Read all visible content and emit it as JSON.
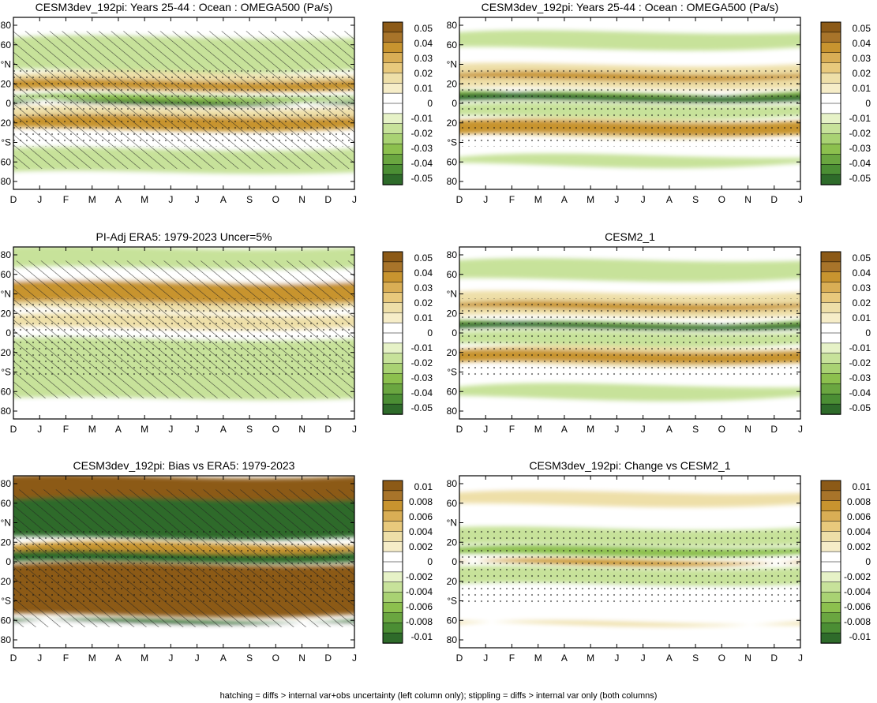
{
  "footer": "hatching = diffs > internal var+obs uncertainty (left column only); stippling = diffs > internal var only (both columns)",
  "months": [
    "D",
    "J",
    "F",
    "M",
    "A",
    "M",
    "J",
    "J",
    "A",
    "S",
    "O",
    "N",
    "D",
    "J"
  ],
  "lat_labels": [
    "80",
    "60",
    "°N",
    "20",
    "0",
    "20",
    "°S",
    "60",
    "80"
  ],
  "main_levels": [
    "0.05",
    "0.04",
    "0.03",
    "0.02",
    "0.01",
    "0",
    "-0.01",
    "-0.02",
    "-0.03",
    "-0.04",
    "-0.05"
  ],
  "diff_levels": [
    "0.01",
    "0.008",
    "0.006",
    "0.004",
    "0.002",
    "0",
    "-0.002",
    "-0.004",
    "-0.006",
    "-0.008",
    "-0.01"
  ],
  "colors": {
    "brown_dark": "#8c5a17",
    "brown_mid": "#c8942f",
    "tan_light": "#eedfa8",
    "white": "#ffffff",
    "green_light": "#c7e29a",
    "green_mid": "#8cc04e",
    "green_dark": "#2e6b2a"
  },
  "panels": [
    {
      "id": "p1",
      "title": "CESM3dev_192pi: Years 25-44 : Ocean : OMEGA500 (Pa/s)",
      "colorbar": "main"
    },
    {
      "id": "p2",
      "title": "CESM3dev_192pi: Years 25-44 : Ocean : OMEGA500 (Pa/s)",
      "colorbar": "main"
    },
    {
      "id": "p3",
      "title": "PI-Adj ERA5: 1979-2023 Uncer=5%",
      "colorbar": "main"
    },
    {
      "id": "p4",
      "title": "CESM2_1",
      "colorbar": "main"
    },
    {
      "id": "p5",
      "title": "CESM3dev_192pi: Bias vs ERA5: 1979-2023",
      "colorbar": "diff"
    },
    {
      "id": "p6",
      "title": "CESM3dev_192pi: Change vs CESM2_1",
      "colorbar": "diff"
    }
  ],
  "chart_data": [
    {
      "type": "heatmap",
      "title": "CESM3dev_192pi: Years 25-44 : Ocean : OMEGA500 (Pa/s)",
      "x": [
        "D",
        "J",
        "F",
        "M",
        "A",
        "M",
        "J",
        "J",
        "A",
        "S",
        "O",
        "N",
        "D",
        "J"
      ],
      "y_ticks": [
        "80",
        "60",
        "°N",
        "20",
        "0",
        "20",
        "°S",
        "60",
        "80"
      ],
      "levels": [
        0.05,
        0.04,
        0.03,
        0.02,
        0.01,
        0,
        -0.01,
        -0.02,
        -0.03,
        -0.04,
        -0.05
      ]
    },
    {
      "type": "heatmap",
      "title": "CESM3dev_192pi: Years 25-44 : Ocean : OMEGA500 (Pa/s)",
      "x": [
        "D",
        "J",
        "F",
        "M",
        "A",
        "M",
        "J",
        "J",
        "A",
        "S",
        "O",
        "N",
        "D",
        "J"
      ],
      "y_ticks": [
        "80",
        "60",
        "°N",
        "20",
        "0",
        "20",
        "°S",
        "60",
        "80"
      ],
      "levels": [
        0.05,
        0.04,
        0.03,
        0.02,
        0.01,
        0,
        -0.01,
        -0.02,
        -0.03,
        -0.04,
        -0.05
      ]
    },
    {
      "type": "heatmap",
      "title": "PI-Adj ERA5: 1979-2023 Uncer=5%",
      "x": [
        "D",
        "J",
        "F",
        "M",
        "A",
        "M",
        "J",
        "J",
        "A",
        "S",
        "O",
        "N",
        "D",
        "J"
      ],
      "y_ticks": [
        "80",
        "60",
        "°N",
        "20",
        "0",
        "20",
        "°S",
        "60",
        "80"
      ],
      "levels": [
        0.05,
        0.04,
        0.03,
        0.02,
        0.01,
        0,
        -0.01,
        -0.02,
        -0.03,
        -0.04,
        -0.05
      ]
    },
    {
      "type": "heatmap",
      "title": "CESM2_1",
      "x": [
        "D",
        "J",
        "F",
        "M",
        "A",
        "M",
        "J",
        "J",
        "A",
        "S",
        "O",
        "N",
        "D",
        "J"
      ],
      "y_ticks": [
        "80",
        "60",
        "°N",
        "20",
        "0",
        "20",
        "°S",
        "60",
        "80"
      ],
      "levels": [
        0.05,
        0.04,
        0.03,
        0.02,
        0.01,
        0,
        -0.01,
        -0.02,
        -0.03,
        -0.04,
        -0.05
      ]
    },
    {
      "type": "heatmap",
      "title": "CESM3dev_192pi: Bias vs ERA5: 1979-2023",
      "x": [
        "D",
        "J",
        "F",
        "M",
        "A",
        "M",
        "J",
        "J",
        "A",
        "S",
        "O",
        "N",
        "D",
        "J"
      ],
      "y_ticks": [
        "80",
        "60",
        "°N",
        "20",
        "0",
        "20",
        "°S",
        "60",
        "80"
      ],
      "levels": [
        0.01,
        0.008,
        0.006,
        0.004,
        0.002,
        0,
        -0.002,
        -0.004,
        -0.006,
        -0.008,
        -0.01
      ]
    },
    {
      "type": "heatmap",
      "title": "CESM3dev_192pi: Change vs CESM2_1",
      "x": [
        "D",
        "J",
        "F",
        "M",
        "A",
        "M",
        "J",
        "J",
        "A",
        "S",
        "O",
        "N",
        "D",
        "J"
      ],
      "y_ticks": [
        "80",
        "60",
        "°N",
        "20",
        "0",
        "20",
        "°S",
        "60",
        "80"
      ],
      "levels": [
        0.01,
        0.008,
        0.006,
        0.004,
        0.002,
        0,
        -0.002,
        -0.004,
        -0.006,
        -0.008,
        -0.01
      ]
    }
  ]
}
